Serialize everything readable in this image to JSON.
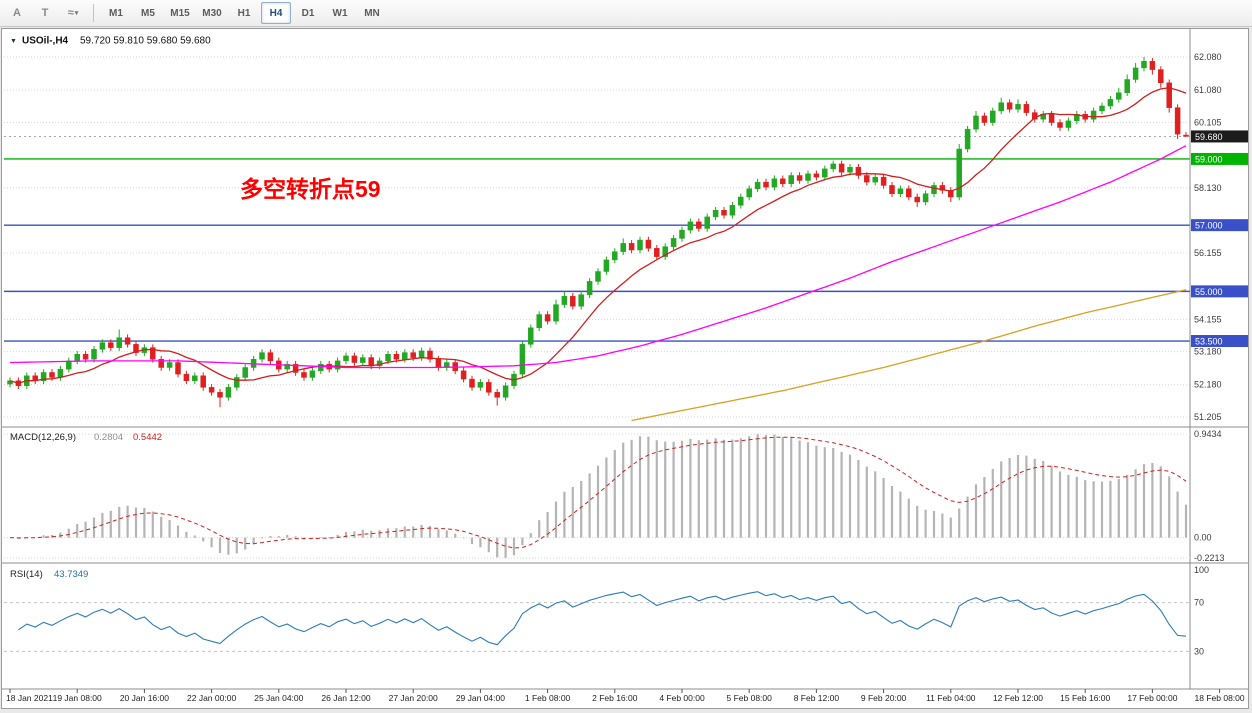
{
  "toolbar": {
    "tools": [
      {
        "id": "text-tool",
        "label": "A"
      },
      {
        "id": "label-tool",
        "label": "T"
      },
      {
        "id": "cycle-tool",
        "label": "≈",
        "caret": "▾"
      }
    ],
    "timeframes": [
      "M1",
      "M5",
      "M15",
      "M30",
      "H1",
      "H4",
      "D1",
      "W1",
      "MN"
    ],
    "active_timeframe": "H4"
  },
  "header": {
    "collapse_icon": "▼",
    "symbol": "USOil-,H4",
    "ohlc": "59.720 59.810 59.680 59.680"
  },
  "chart_data": {
    "type": "candlestick",
    "symbol": "USOil-",
    "timeframe": "H4",
    "colors": {
      "up": "#22a822",
      "down": "#e02020"
    },
    "annotation": {
      "text": "多空转折点59",
      "color": "#ff0000"
    },
    "price_axis": {
      "min": 50.963,
      "max": 62.835,
      "gridlines": [
        "62.080",
        "61.080",
        "60.105",
        "58.130",
        "56.155",
        "54.155",
        "53.180",
        "52.180",
        "51.205"
      ]
    },
    "current_price": {
      "value": 59.68,
      "label": "59.680",
      "badge_color": "#1c1c1c"
    },
    "hlines": [
      {
        "value": 59.0,
        "label": "59.000",
        "color": "#00b400"
      },
      {
        "value": 57.0,
        "label": "57.000",
        "color": "#3a50c8"
      },
      {
        "value": 55.0,
        "label": "55.000",
        "color": "#3a50c8"
      },
      {
        "value": 53.5,
        "label": "53.500",
        "color": "#3a50c8"
      }
    ],
    "x_labels": [
      "18 Jan 2021",
      "19 Jan 08:00",
      "20 Jan 16:00",
      "22 Jan 00:00",
      "25 Jan 04:00",
      "26 Jan 12:00",
      "27 Jan 20:00",
      "29 Jan 04:00",
      "1 Feb 08:00",
      "2 Feb 16:00",
      "4 Feb 00:00",
      "5 Feb 08:00",
      "8 Feb 12:00",
      "9 Feb 20:00",
      "11 Feb 04:00",
      "12 Feb 12:00",
      "15 Feb 16:00",
      "17 Feb 00:00",
      "18 Feb 08:00"
    ],
    "x_label_positions": [
      0,
      8,
      16,
      24,
      32,
      40,
      48,
      56,
      64,
      72,
      80,
      88,
      96,
      104,
      112,
      120,
      128,
      136,
      144
    ],
    "candles": [
      [
        52.2,
        52.4,
        52.1,
        52.3
      ],
      [
        52.3,
        52.4,
        52.05,
        52.15
      ],
      [
        52.15,
        52.55,
        52.05,
        52.45
      ],
      [
        52.45,
        52.55,
        52.2,
        52.3
      ],
      [
        52.3,
        52.65,
        52.2,
        52.55
      ],
      [
        52.55,
        52.65,
        52.3,
        52.4
      ],
      [
        52.4,
        52.75,
        52.3,
        52.65
      ],
      [
        52.65,
        53.0,
        52.55,
        52.9
      ],
      [
        52.9,
        53.2,
        52.8,
        53.1
      ],
      [
        53.1,
        53.2,
        52.85,
        52.95
      ],
      [
        52.95,
        53.35,
        52.85,
        53.25
      ],
      [
        53.25,
        53.55,
        53.15,
        53.45
      ],
      [
        53.45,
        53.55,
        53.2,
        53.3
      ],
      [
        53.3,
        53.85,
        53.2,
        53.6
      ],
      [
        53.6,
        53.7,
        53.3,
        53.4
      ],
      [
        53.4,
        53.5,
        53.05,
        53.15
      ],
      [
        53.15,
        53.4,
        53.05,
        53.3
      ],
      [
        53.3,
        53.4,
        52.85,
        52.95
      ],
      [
        52.95,
        53.05,
        52.6,
        52.7
      ],
      [
        52.7,
        52.95,
        52.6,
        52.85
      ],
      [
        52.85,
        52.95,
        52.4,
        52.5
      ],
      [
        52.5,
        52.6,
        52.2,
        52.3
      ],
      [
        52.3,
        52.55,
        52.2,
        52.45
      ],
      [
        52.45,
        52.55,
        52.0,
        52.1
      ],
      [
        52.1,
        52.2,
        51.85,
        51.95
      ],
      [
        51.95,
        52.05,
        51.5,
        51.8
      ],
      [
        51.8,
        52.2,
        51.7,
        52.1
      ],
      [
        52.1,
        52.5,
        52.0,
        52.4
      ],
      [
        52.4,
        52.8,
        52.3,
        52.7
      ],
      [
        52.7,
        53.05,
        52.6,
        52.95
      ],
      [
        52.95,
        53.25,
        52.85,
        53.15
      ],
      [
        53.15,
        53.25,
        52.8,
        52.9
      ],
      [
        52.9,
        53.0,
        52.55,
        52.65
      ],
      [
        52.65,
        52.9,
        52.55,
        52.8
      ],
      [
        52.8,
        52.9,
        52.45,
        52.55
      ],
      [
        52.55,
        52.65,
        52.3,
        52.4
      ],
      [
        52.4,
        52.7,
        52.3,
        52.6
      ],
      [
        52.6,
        52.9,
        52.5,
        52.8
      ],
      [
        52.8,
        52.9,
        52.55,
        52.65
      ],
      [
        52.65,
        53.0,
        52.55,
        52.9
      ],
      [
        52.9,
        53.15,
        52.8,
        53.05
      ],
      [
        53.05,
        53.15,
        52.75,
        52.85
      ],
      [
        52.85,
        53.1,
        52.75,
        53.0
      ],
      [
        53.0,
        53.1,
        52.65,
        52.75
      ],
      [
        52.75,
        53.0,
        52.65,
        52.9
      ],
      [
        52.9,
        53.2,
        52.8,
        53.1
      ],
      [
        53.1,
        53.2,
        52.85,
        52.95
      ],
      [
        52.95,
        53.25,
        52.85,
        53.15
      ],
      [
        53.15,
        53.25,
        52.9,
        53.0
      ],
      [
        53.0,
        53.3,
        52.9,
        53.2
      ],
      [
        53.2,
        53.3,
        52.85,
        52.95
      ],
      [
        52.95,
        53.05,
        52.6,
        52.7
      ],
      [
        52.7,
        52.95,
        52.6,
        52.85
      ],
      [
        52.85,
        52.95,
        52.5,
        52.6
      ],
      [
        52.6,
        52.7,
        52.25,
        52.35
      ],
      [
        52.35,
        52.45,
        52.0,
        52.1
      ],
      [
        52.1,
        52.35,
        52.0,
        52.25
      ],
      [
        52.25,
        52.35,
        51.85,
        51.95
      ],
      [
        51.95,
        52.05,
        51.55,
        51.8
      ],
      [
        51.8,
        52.25,
        51.7,
        52.15
      ],
      [
        52.15,
        52.6,
        52.05,
        52.5
      ],
      [
        52.5,
        53.5,
        52.4,
        53.4
      ],
      [
        53.4,
        54.0,
        53.3,
        53.9
      ],
      [
        53.9,
        54.4,
        53.8,
        54.3
      ],
      [
        54.3,
        54.4,
        54.0,
        54.1
      ],
      [
        54.1,
        54.75,
        54.0,
        54.6
      ],
      [
        54.6,
        55.0,
        54.5,
        54.85
      ],
      [
        54.85,
        54.95,
        54.45,
        54.55
      ],
      [
        54.55,
        55.0,
        54.45,
        54.9
      ],
      [
        54.9,
        55.4,
        54.8,
        55.3
      ],
      [
        55.3,
        55.7,
        55.2,
        55.6
      ],
      [
        55.6,
        56.05,
        55.5,
        55.95
      ],
      [
        55.95,
        56.3,
        55.85,
        56.2
      ],
      [
        56.2,
        56.6,
        56.1,
        56.45
      ],
      [
        56.45,
        56.55,
        56.15,
        56.25
      ],
      [
        56.25,
        56.65,
        56.15,
        56.55
      ],
      [
        56.55,
        56.65,
        56.2,
        56.3
      ],
      [
        56.3,
        56.4,
        55.95,
        56.05
      ],
      [
        56.05,
        56.45,
        55.95,
        56.35
      ],
      [
        56.35,
        56.7,
        56.25,
        56.6
      ],
      [
        56.6,
        56.95,
        56.5,
        56.85
      ],
      [
        56.85,
        57.2,
        56.75,
        57.1
      ],
      [
        57.1,
        57.2,
        56.8,
        56.9
      ],
      [
        56.9,
        57.35,
        56.8,
        57.25
      ],
      [
        57.25,
        57.55,
        57.15,
        57.45
      ],
      [
        57.45,
        57.55,
        57.2,
        57.3
      ],
      [
        57.3,
        57.7,
        57.2,
        57.6
      ],
      [
        57.6,
        57.95,
        57.5,
        57.85
      ],
      [
        57.85,
        58.2,
        57.75,
        58.1
      ],
      [
        58.1,
        58.4,
        58.0,
        58.3
      ],
      [
        58.3,
        58.4,
        58.05,
        58.15
      ],
      [
        58.15,
        58.5,
        58.05,
        58.4
      ],
      [
        58.4,
        58.5,
        58.15,
        58.25
      ],
      [
        58.25,
        58.6,
        58.15,
        58.5
      ],
      [
        58.5,
        58.6,
        58.25,
        58.35
      ],
      [
        58.35,
        58.65,
        58.25,
        58.55
      ],
      [
        58.55,
        58.65,
        58.35,
        58.45
      ],
      [
        58.45,
        58.8,
        58.35,
        58.7
      ],
      [
        58.7,
        58.95,
        58.6,
        58.85
      ],
      [
        58.85,
        58.95,
        58.5,
        58.6
      ],
      [
        58.6,
        58.85,
        58.5,
        58.75
      ],
      [
        58.75,
        58.85,
        58.4,
        58.5
      ],
      [
        58.5,
        58.6,
        58.2,
        58.3
      ],
      [
        58.3,
        58.55,
        58.2,
        58.45
      ],
      [
        58.45,
        58.55,
        58.1,
        58.2
      ],
      [
        58.2,
        58.3,
        57.85,
        57.95
      ],
      [
        57.95,
        58.2,
        57.85,
        58.1
      ],
      [
        58.1,
        58.2,
        57.75,
        57.85
      ],
      [
        57.85,
        57.95,
        57.55,
        57.7
      ],
      [
        57.7,
        58.05,
        57.6,
        57.95
      ],
      [
        57.95,
        58.3,
        57.85,
        58.2
      ],
      [
        58.2,
        58.3,
        57.95,
        58.05
      ],
      [
        58.05,
        58.15,
        57.7,
        57.85
      ],
      [
        57.85,
        59.45,
        57.75,
        59.3
      ],
      [
        59.3,
        60.0,
        59.2,
        59.9
      ],
      [
        59.9,
        60.45,
        59.8,
        60.3
      ],
      [
        60.3,
        60.4,
        60.0,
        60.1
      ],
      [
        60.1,
        60.55,
        60.0,
        60.45
      ],
      [
        60.45,
        60.85,
        60.35,
        60.7
      ],
      [
        60.7,
        60.8,
        60.4,
        60.5
      ],
      [
        60.5,
        60.8,
        60.4,
        60.65
      ],
      [
        60.65,
        60.75,
        60.3,
        60.4
      ],
      [
        60.4,
        60.5,
        60.1,
        60.2
      ],
      [
        60.2,
        60.45,
        60.1,
        60.35
      ],
      [
        60.35,
        60.45,
        60.0,
        60.1
      ],
      [
        60.1,
        60.2,
        59.85,
        59.95
      ],
      [
        59.95,
        60.25,
        59.85,
        60.15
      ],
      [
        60.15,
        60.45,
        60.05,
        60.35
      ],
      [
        60.35,
        60.45,
        60.1,
        60.2
      ],
      [
        60.2,
        60.55,
        60.1,
        60.45
      ],
      [
        60.45,
        60.7,
        60.35,
        60.6
      ],
      [
        60.6,
        60.9,
        60.5,
        60.8
      ],
      [
        60.8,
        61.15,
        60.7,
        61.0
      ],
      [
        61.0,
        61.55,
        60.9,
        61.4
      ],
      [
        61.4,
        61.9,
        61.3,
        61.75
      ],
      [
        61.75,
        62.08,
        61.65,
        61.95
      ],
      [
        61.95,
        62.05,
        61.55,
        61.7
      ],
      [
        61.7,
        61.8,
        61.15,
        61.3
      ],
      [
        61.3,
        61.4,
        60.4,
        60.55
      ],
      [
        60.55,
        60.65,
        59.6,
        59.75
      ],
      [
        59.72,
        59.81,
        59.68,
        59.68
      ]
    ],
    "moving_averages": [
      {
        "id": "ma-fast",
        "color": "#d02020",
        "type": "sma",
        "period": 10
      },
      {
        "id": "ma-mid",
        "color": "#ff00ff",
        "type": "keypoints",
        "keypoints": [
          [
            0,
            52.85
          ],
          [
            10,
            52.9
          ],
          [
            20,
            52.9
          ],
          [
            30,
            52.8
          ],
          [
            40,
            52.7
          ],
          [
            50,
            52.7
          ],
          [
            55,
            52.72
          ],
          [
            60,
            52.75
          ],
          [
            65,
            52.85
          ],
          [
            70,
            53.05
          ],
          [
            75,
            53.35
          ],
          [
            80,
            53.7
          ],
          [
            85,
            54.1
          ],
          [
            90,
            54.5
          ],
          [
            95,
            54.95
          ],
          [
            100,
            55.4
          ],
          [
            105,
            55.9
          ],
          [
            110,
            56.35
          ],
          [
            115,
            56.8
          ],
          [
            120,
            57.25
          ],
          [
            125,
            57.7
          ],
          [
            128,
            58.0
          ],
          [
            131,
            58.3
          ],
          [
            134,
            58.65
          ],
          [
            137,
            59.0
          ],
          [
            140,
            59.4
          ]
        ]
      },
      {
        "id": "ma-slow",
        "color": "#d9a021",
        "type": "keypoints",
        "keypoints": [
          [
            74,
            51.1
          ],
          [
            80,
            51.4
          ],
          [
            86,
            51.7
          ],
          [
            92,
            52.0
          ],
          [
            98,
            52.35
          ],
          [
            104,
            52.7
          ],
          [
            110,
            53.1
          ],
          [
            116,
            53.5
          ],
          [
            122,
            53.95
          ],
          [
            128,
            54.35
          ],
          [
            134,
            54.7
          ],
          [
            140,
            55.05
          ]
        ]
      }
    ],
    "macd": {
      "label": "MACD(12,26,9)",
      "value_main": "0.2804",
      "value_signal": "0.5442",
      "fast": 12,
      "slow": 26,
      "signal": 9,
      "axis_labels": [
        "0.9434",
        "0.00",
        "-0.2213"
      ],
      "hist_color": "#b4b4b4",
      "signal_color": "#cc2222"
    },
    "rsi": {
      "label": "RSI(14)",
      "value": "43.7349",
      "period": 14,
      "range": [
        0,
        100
      ],
      "levels": [
        70,
        30
      ],
      "axis_labels": [
        100,
        70,
        30
      ],
      "color": "#2b7bba"
    }
  }
}
